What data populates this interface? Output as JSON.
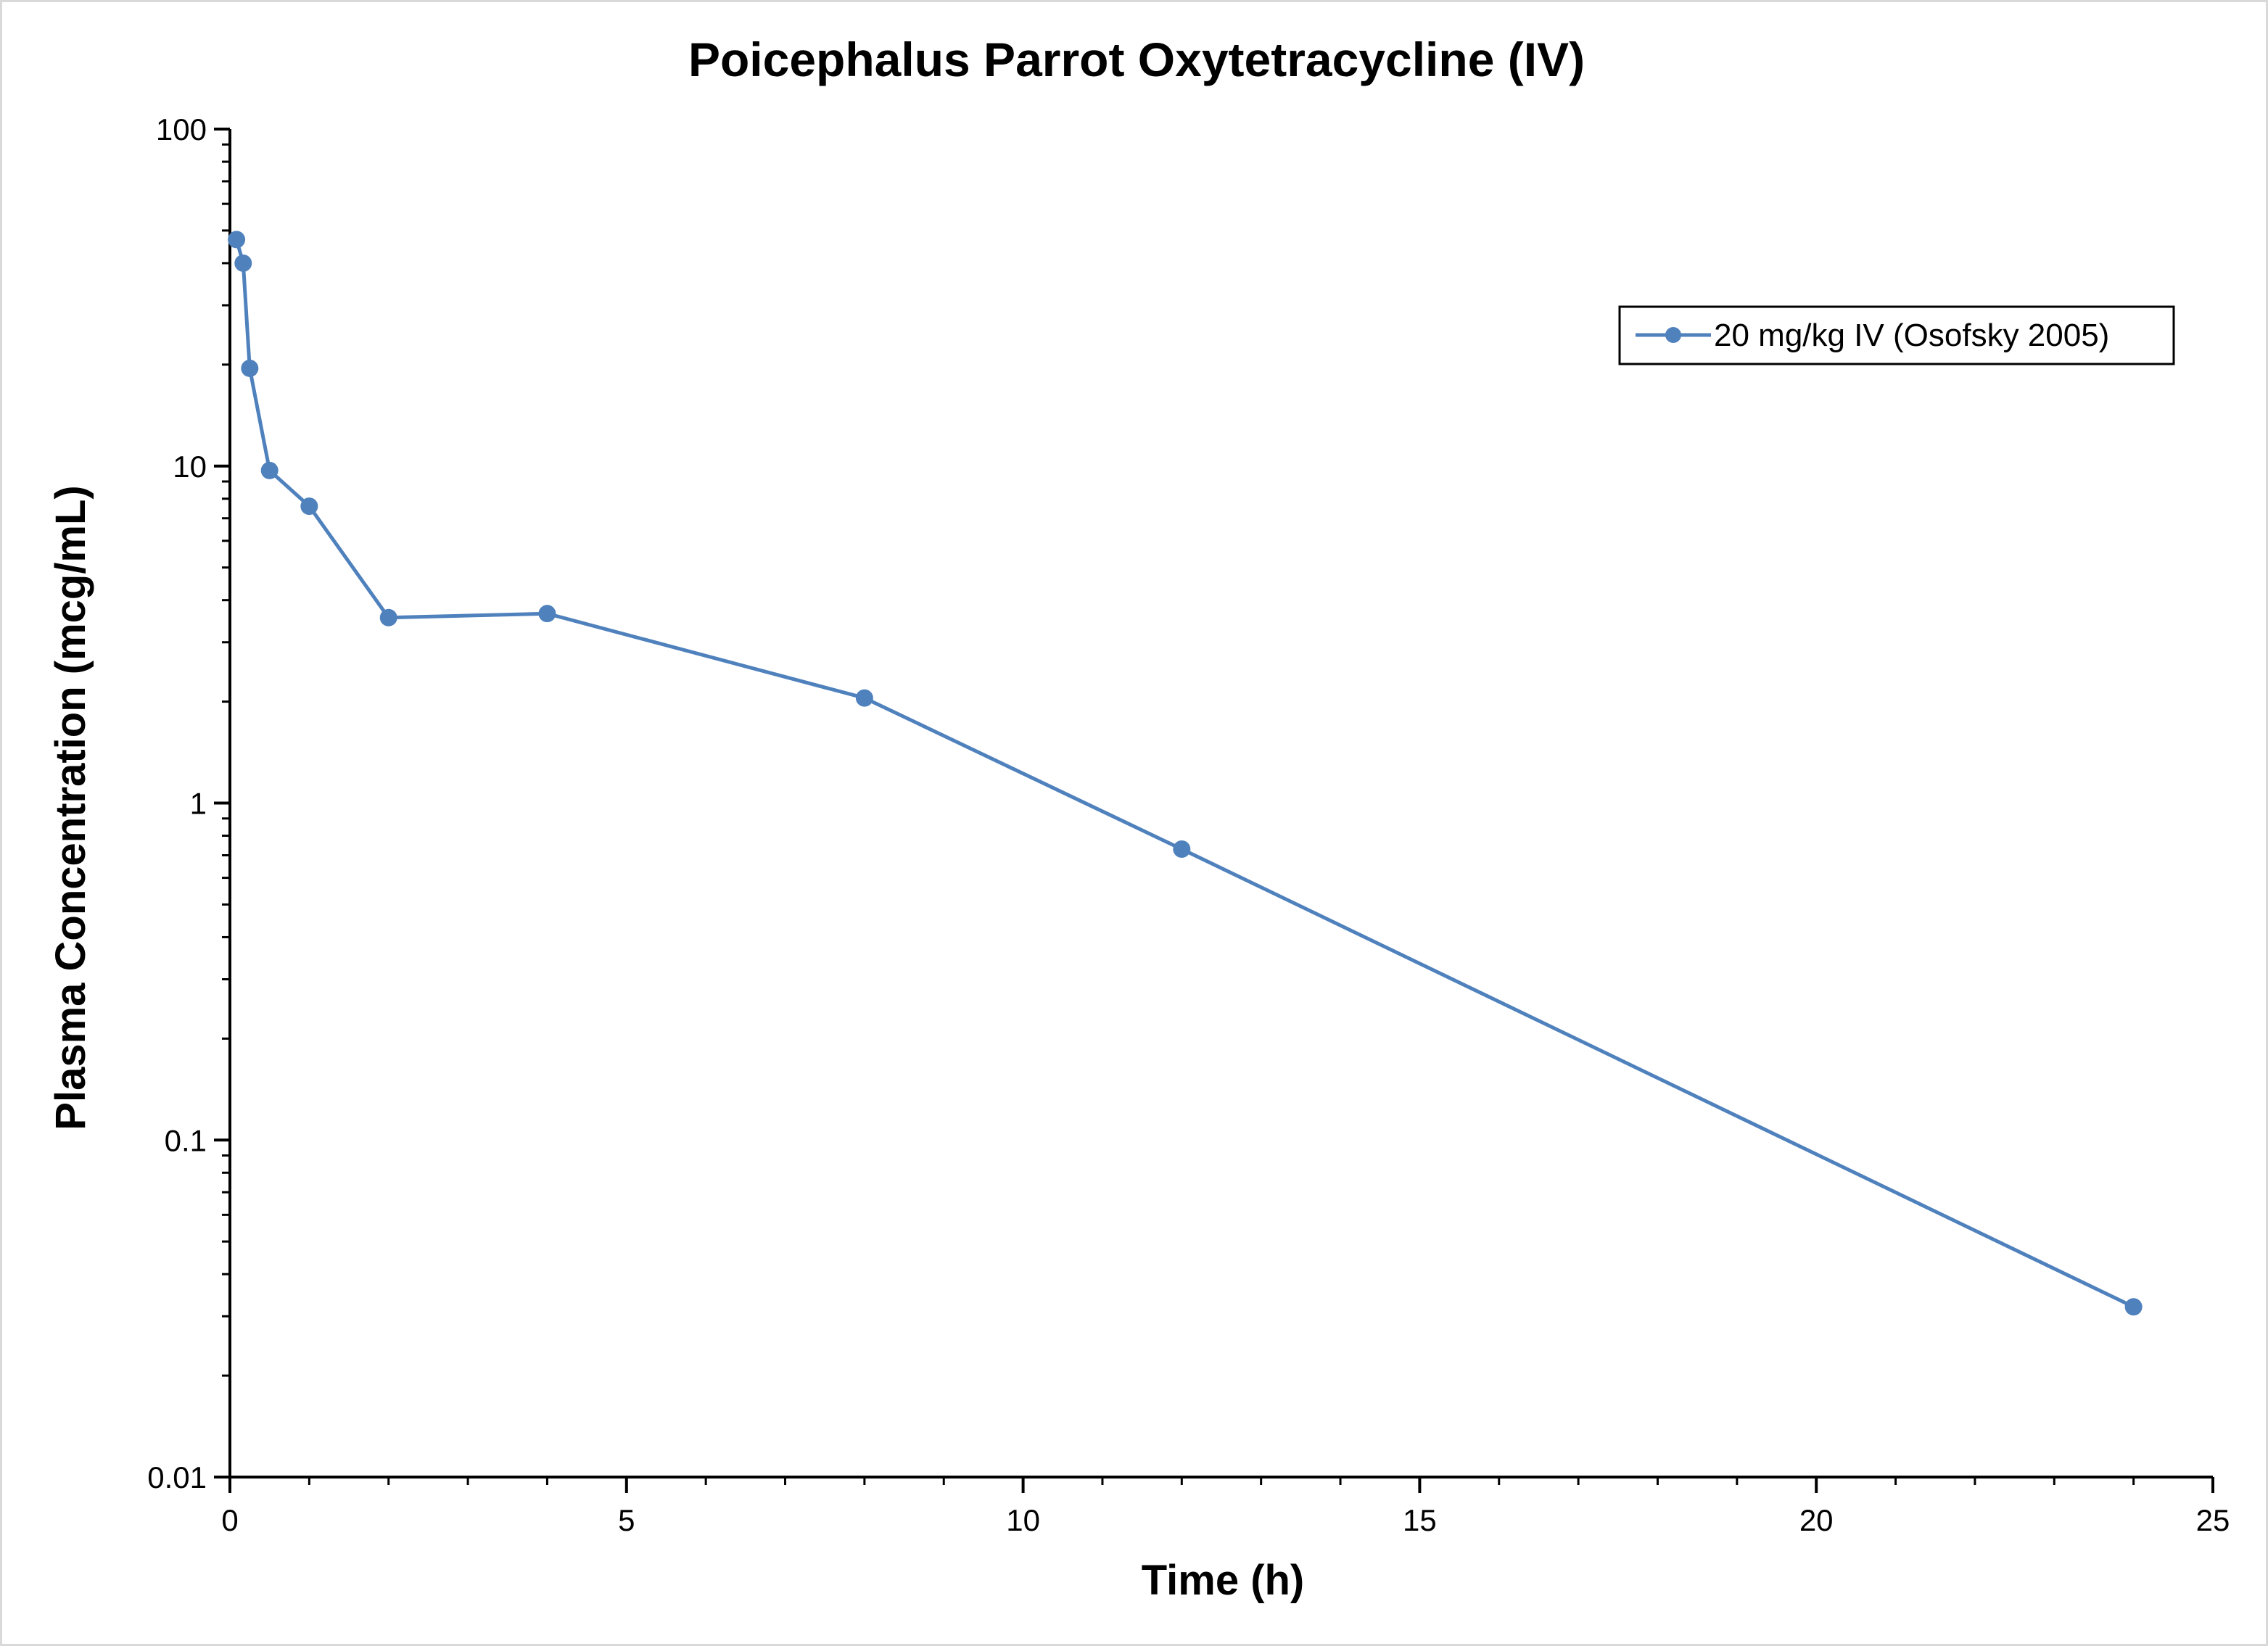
{
  "chart_data": {
    "type": "line",
    "title": "Poicephalus Parrot Oxytetracycline (IV)",
    "xlabel": "Time (h)",
    "ylabel": "Plasma Concentration (mcg/mL)",
    "xlim": [
      0,
      25
    ],
    "ylim": [
      0.01,
      100
    ],
    "y_scale": "log",
    "x_ticks": [
      "0",
      "5",
      "10",
      "15",
      "20",
      "25"
    ],
    "y_ticks": [
      "0.01",
      "0.1",
      "1",
      "10",
      "100"
    ],
    "grid": false,
    "legend_position": "top-right",
    "series": [
      {
        "name": "20 mg/kg IV (Osofsky 2005)",
        "color": "#4f81bd",
        "marker": "circle",
        "x": [
          0.083,
          0.167,
          0.25,
          0.5,
          1,
          2,
          4,
          8,
          12,
          24
        ],
        "y": [
          47,
          40,
          19.5,
          9.7,
          7.6,
          3.55,
          3.65,
          2.05,
          0.73,
          0.032
        ]
      }
    ]
  }
}
